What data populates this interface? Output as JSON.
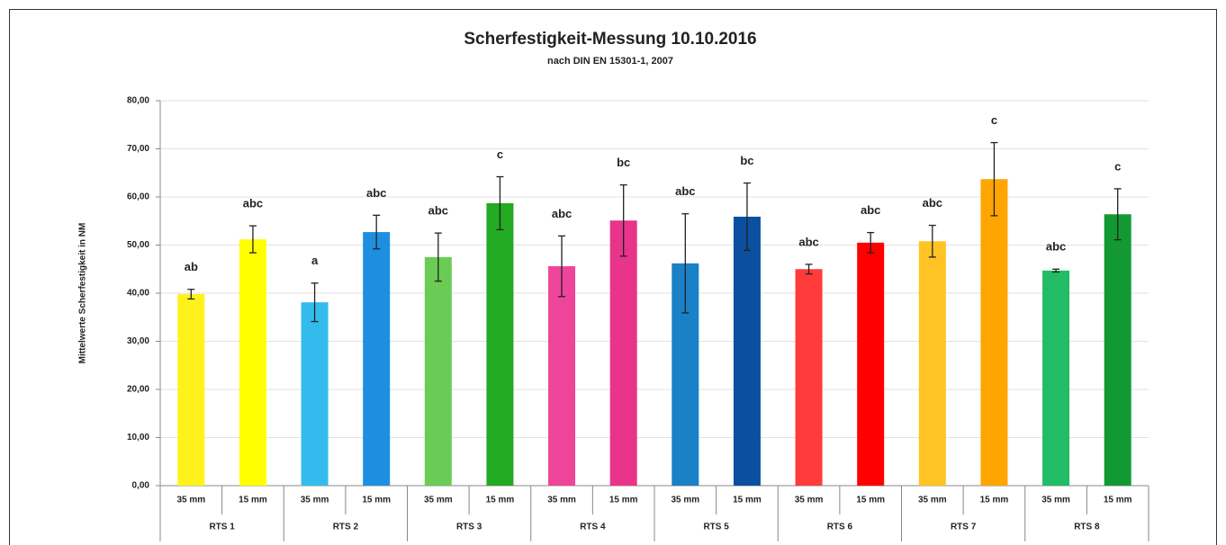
{
  "chart_data": {
    "type": "bar",
    "title": "Scherfestigkeit-Messung 10.10.2016",
    "subtitle": "nach DIN EN 15301-1, 2007",
    "y_label": "Mittelwerte Scherfestigkeit in NM",
    "categories": [
      "35 mm",
      "15 mm",
      "35 mm",
      "15 mm",
      "35 mm",
      "15 mm",
      "35 mm",
      "15 mm",
      "35 mm",
      "15 mm",
      "35 mm",
      "15 mm",
      "35 mm",
      "15 mm",
      "35 mm",
      "15 mm"
    ],
    "groups": [
      "RTS 1",
      "RTS 2",
      "RTS 3",
      "RTS 4",
      "RTS 5",
      "RTS 6",
      "RTS 7",
      "RTS 8"
    ],
    "values": [
      39.8,
      51.2,
      38.1,
      52.7,
      47.5,
      58.7,
      45.6,
      55.1,
      46.2,
      55.9,
      45.0,
      50.5,
      50.8,
      63.7,
      44.7,
      56.4
    ],
    "errors": [
      1.0,
      2.8,
      4.0,
      3.5,
      5.0,
      5.5,
      6.3,
      7.4,
      10.3,
      7.0,
      1.0,
      2.1,
      3.3,
      7.6,
      0.3,
      5.3
    ],
    "colors": [
      "#fff21a",
      "#ffff00",
      "#33bbee",
      "#1e8fe0",
      "#6acc55",
      "#22aa22",
      "#ee4499",
      "#e8348a",
      "#1a80c8",
      "#0b4fa0",
      "#ff3b3b",
      "#ff0000",
      "#ffc323",
      "#ffa500",
      "#22bb66",
      "#129933"
    ],
    "annotations": [
      "ab",
      "abc",
      "a",
      "abc",
      "abc",
      "c",
      "abc",
      "bc",
      "abc",
      "bc",
      "abc",
      "abc",
      "abc",
      "c",
      "abc",
      "c"
    ],
    "ylim": [
      0,
      80
    ],
    "yticks": [
      {
        "value": 0,
        "label": "0,00"
      },
      {
        "value": 10,
        "label": "10,00"
      },
      {
        "value": 20,
        "label": "20,00"
      },
      {
        "value": 30,
        "label": "30,00"
      },
      {
        "value": 40,
        "label": "40,00"
      },
      {
        "value": 50,
        "label": "50,00"
      },
      {
        "value": 60,
        "label": "60,00"
      },
      {
        "value": 70,
        "label": "70,00"
      },
      {
        "value": 80,
        "label": "80,00"
      }
    ],
    "grid": true
  }
}
